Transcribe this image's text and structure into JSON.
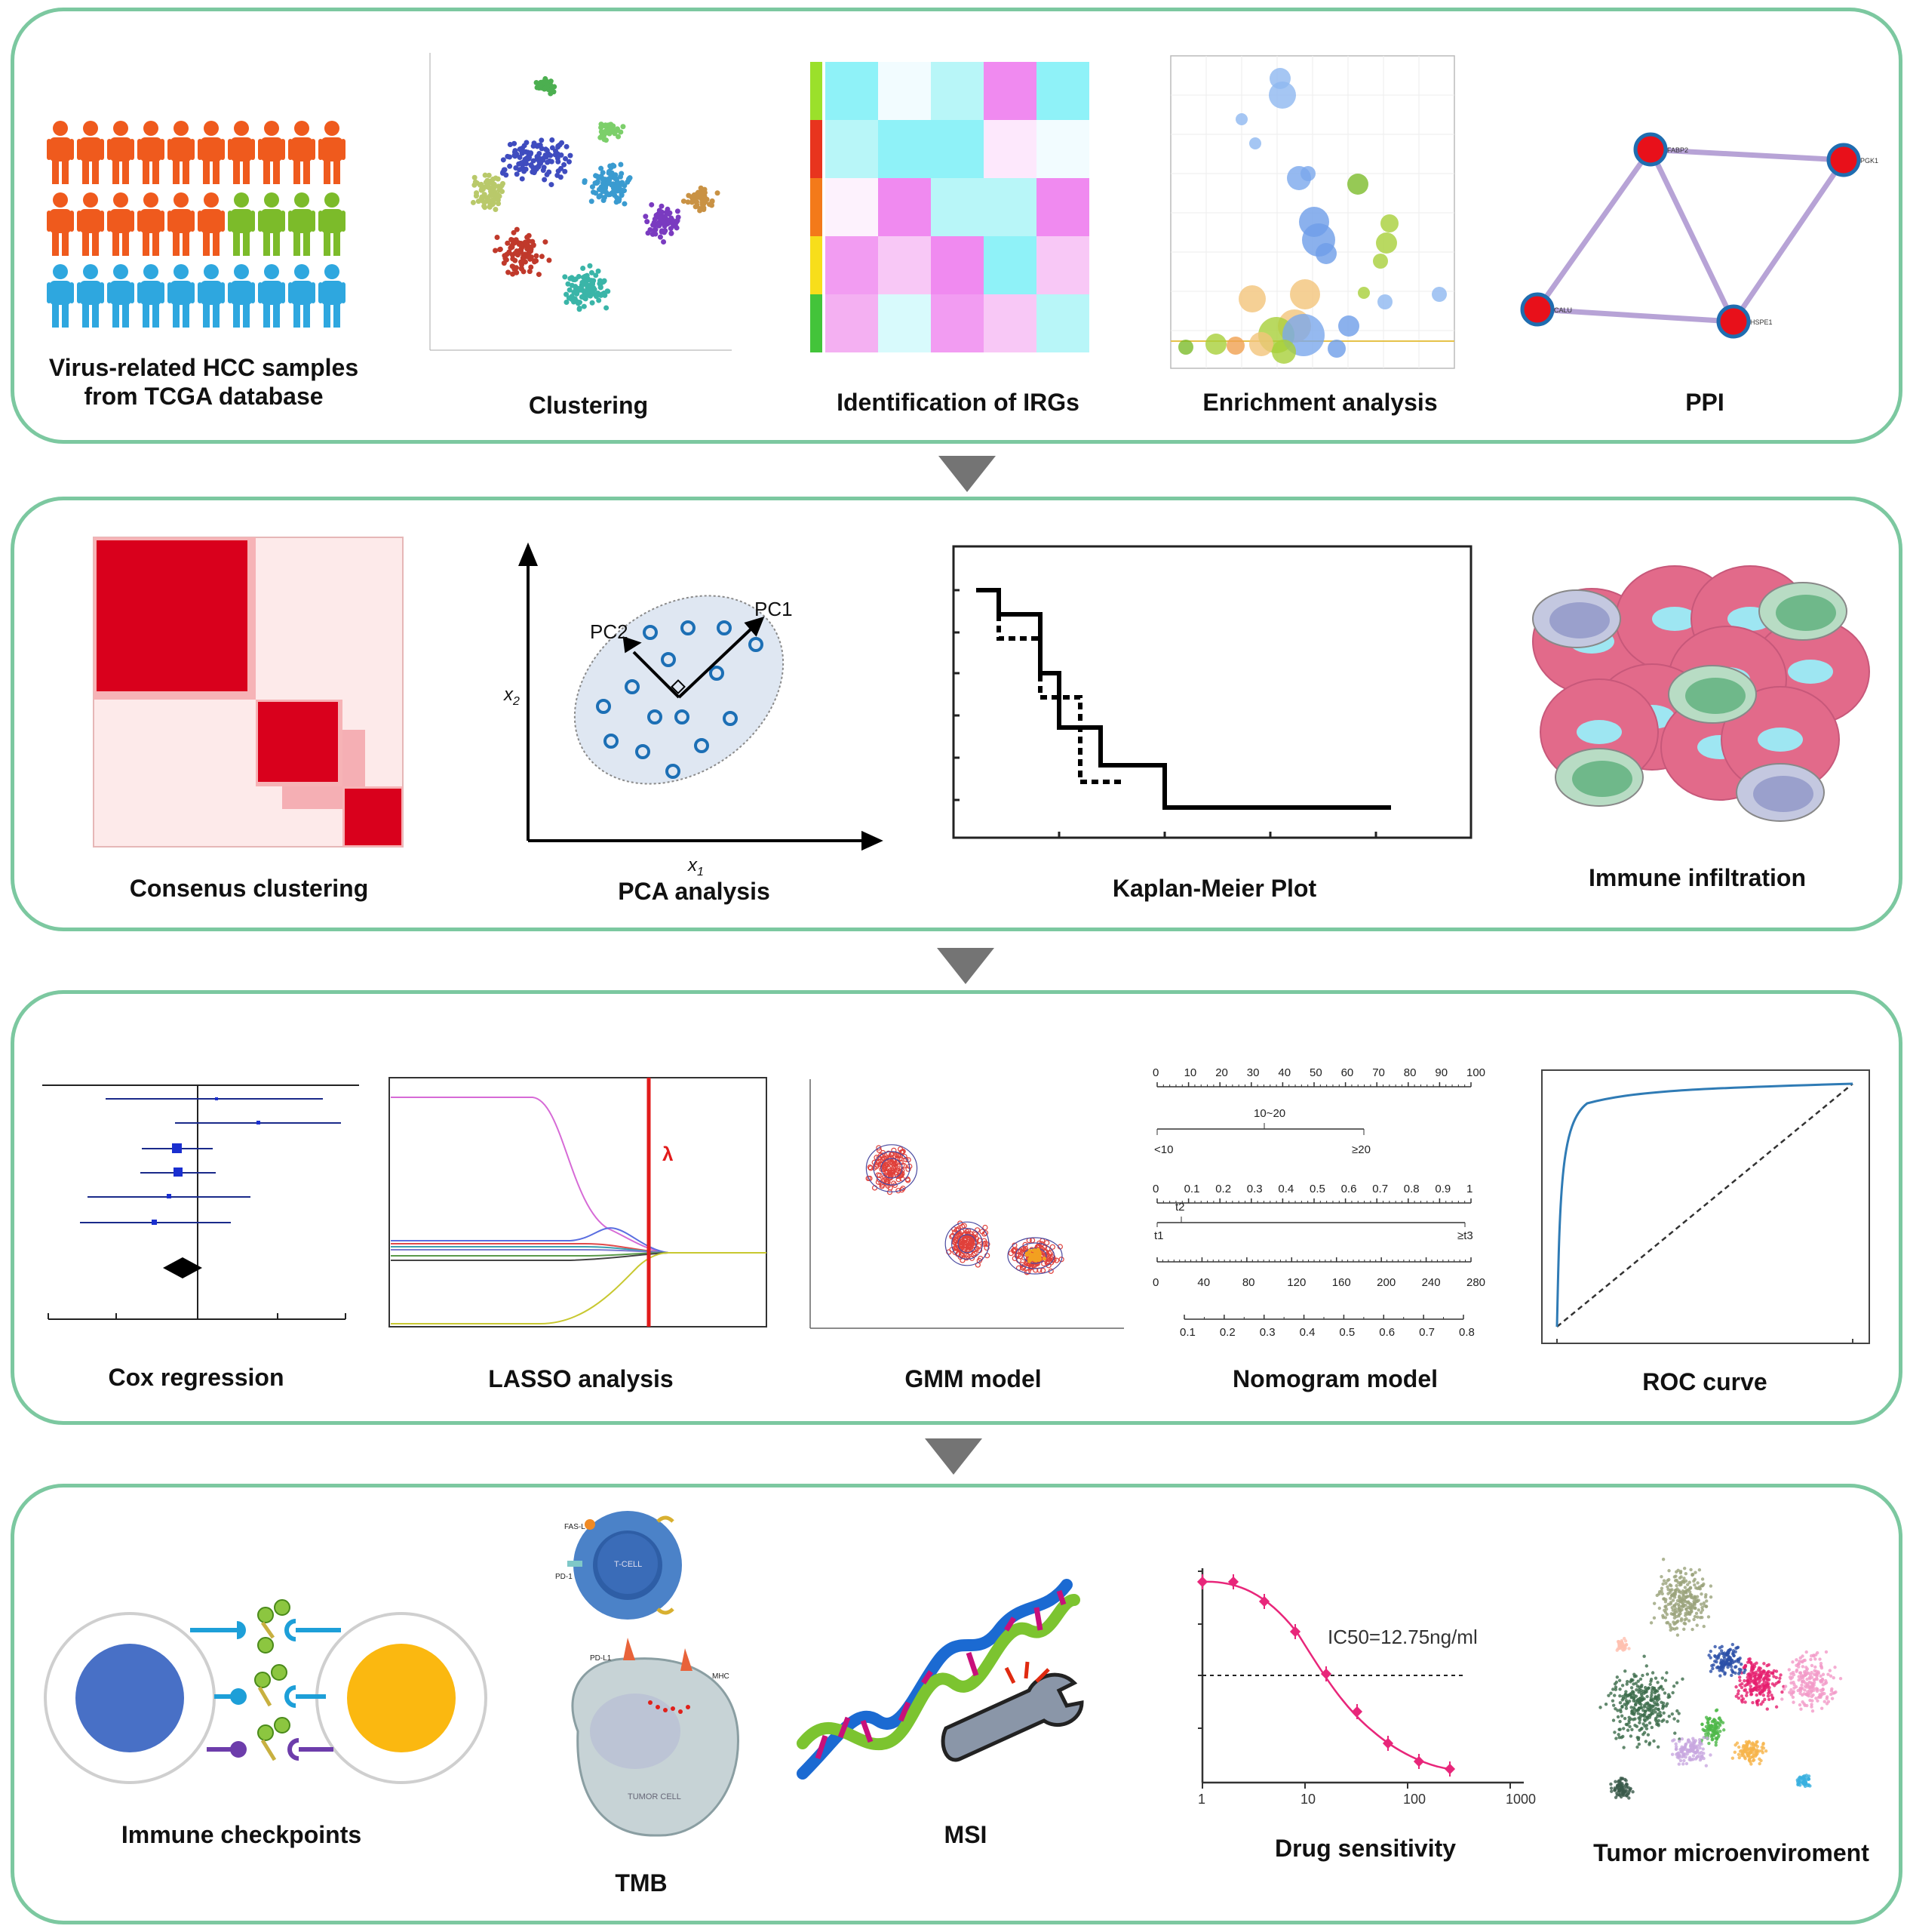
{
  "panels": [
    {
      "items": [
        {
          "label": "Virus-related HCC samples\nfrom TCGA database"
        },
        {
          "label": "Clustering"
        },
        {
          "label": "Identification of IRGs"
        },
        {
          "label": "Enrichment analysis"
        },
        {
          "label": "PPI"
        }
      ]
    },
    {
      "items": [
        {
          "label": "Consenus clustering"
        },
        {
          "label": "PCA analysis"
        },
        {
          "label": "Kaplan-Meier Plot"
        },
        {
          "label": "Immune infiltration"
        }
      ]
    },
    {
      "items": [
        {
          "label": "Cox regression"
        },
        {
          "label": "LASSO analysis"
        },
        {
          "label": "GMM model"
        },
        {
          "label": "Nomogram model"
        },
        {
          "label": "ROC curve"
        }
      ]
    },
    {
      "items": [
        {
          "label": "Immune checkpoints"
        },
        {
          "label": "TMB"
        },
        {
          "label": "MSI"
        },
        {
          "label": "Drug sensitivity"
        },
        {
          "label": "Tumor microenviroment"
        }
      ]
    }
  ],
  "ppi": {
    "nodes": [
      "FABP2",
      "PGK1",
      "CALU",
      "HSPE1"
    ]
  },
  "pca": {
    "pc1": "PC1",
    "pc2": "PC2",
    "x1": "x",
    "x1_sub": "1",
    "x2": "x",
    "x2_sub": "2"
  },
  "lasso": {
    "lambda": "λ"
  },
  "nomogram": {
    "points_ticks": [
      "0",
      "10",
      "20",
      "30",
      "40",
      "50",
      "60",
      "70",
      "80",
      "90",
      "100"
    ],
    "row2": {
      "mid": "10~20",
      "left": "<10",
      "right": "≥20"
    },
    "row3_ticks": [
      "0",
      "0.1",
      "0.2",
      "0.3",
      "0.4",
      "0.5",
      "0.6",
      "0.7",
      "0.8",
      "0.9",
      "1"
    ],
    "row4": {
      "mid": "t2",
      "left": "t1",
      "right": "≥t3"
    },
    "row5_ticks": [
      "0",
      "40",
      "80",
      "120",
      "160",
      "200",
      "240",
      "280"
    ],
    "row6_ticks": [
      "0.1",
      "0.2",
      "0.3",
      "0.4",
      "0.5",
      "0.6",
      "0.7",
      "0.8"
    ]
  },
  "tmb": {
    "tcell": "T-CELL",
    "fasl": "FAS-L",
    "pd1": "PD-1",
    "pdl1": "PD-L1",
    "mhc": "MHC",
    "tumor": "TUMOR CELL"
  },
  "drug": {
    "ic50": "IC50=12.75ng/ml",
    "xticks": [
      "1",
      "10",
      "100",
      "1000"
    ]
  },
  "colors": {
    "border": "#7cc8a0",
    "arrow": "#747474",
    "red": "#e0001b",
    "orange": "#ef5a1d",
    "green": "#7cbb2a",
    "blue": "#2ea7df"
  }
}
